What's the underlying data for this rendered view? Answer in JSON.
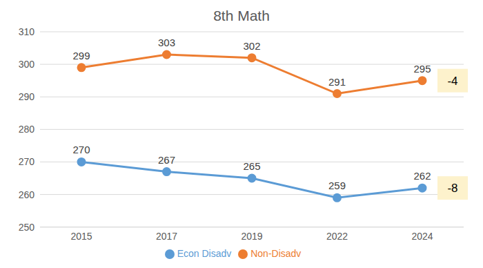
{
  "chart_data": {
    "type": "line",
    "title": "8th Math",
    "categories": [
      "2015",
      "2017",
      "2019",
      "2022",
      "2024"
    ],
    "series": [
      {
        "name": "Econ Disadv",
        "color": "#5b9bd5",
        "values": [
          270,
          267,
          265,
          259,
          262
        ],
        "marker": "circle"
      },
      {
        "name": "Non-Disadv",
        "color": "#ed7d31",
        "values": [
          299,
          303,
          302,
          291,
          295
        ],
        "marker": "circle"
      }
    ],
    "annotations": [
      {
        "text": "-8",
        "series": "Econ Disadv"
      },
      {
        "text": "-4",
        "series": "Non-Disadv"
      }
    ],
    "ylim": [
      250,
      310
    ],
    "yticks": [
      250,
      260,
      270,
      280,
      290,
      300,
      310
    ],
    "grid": true,
    "legend": "bottom",
    "data_labels": true
  }
}
